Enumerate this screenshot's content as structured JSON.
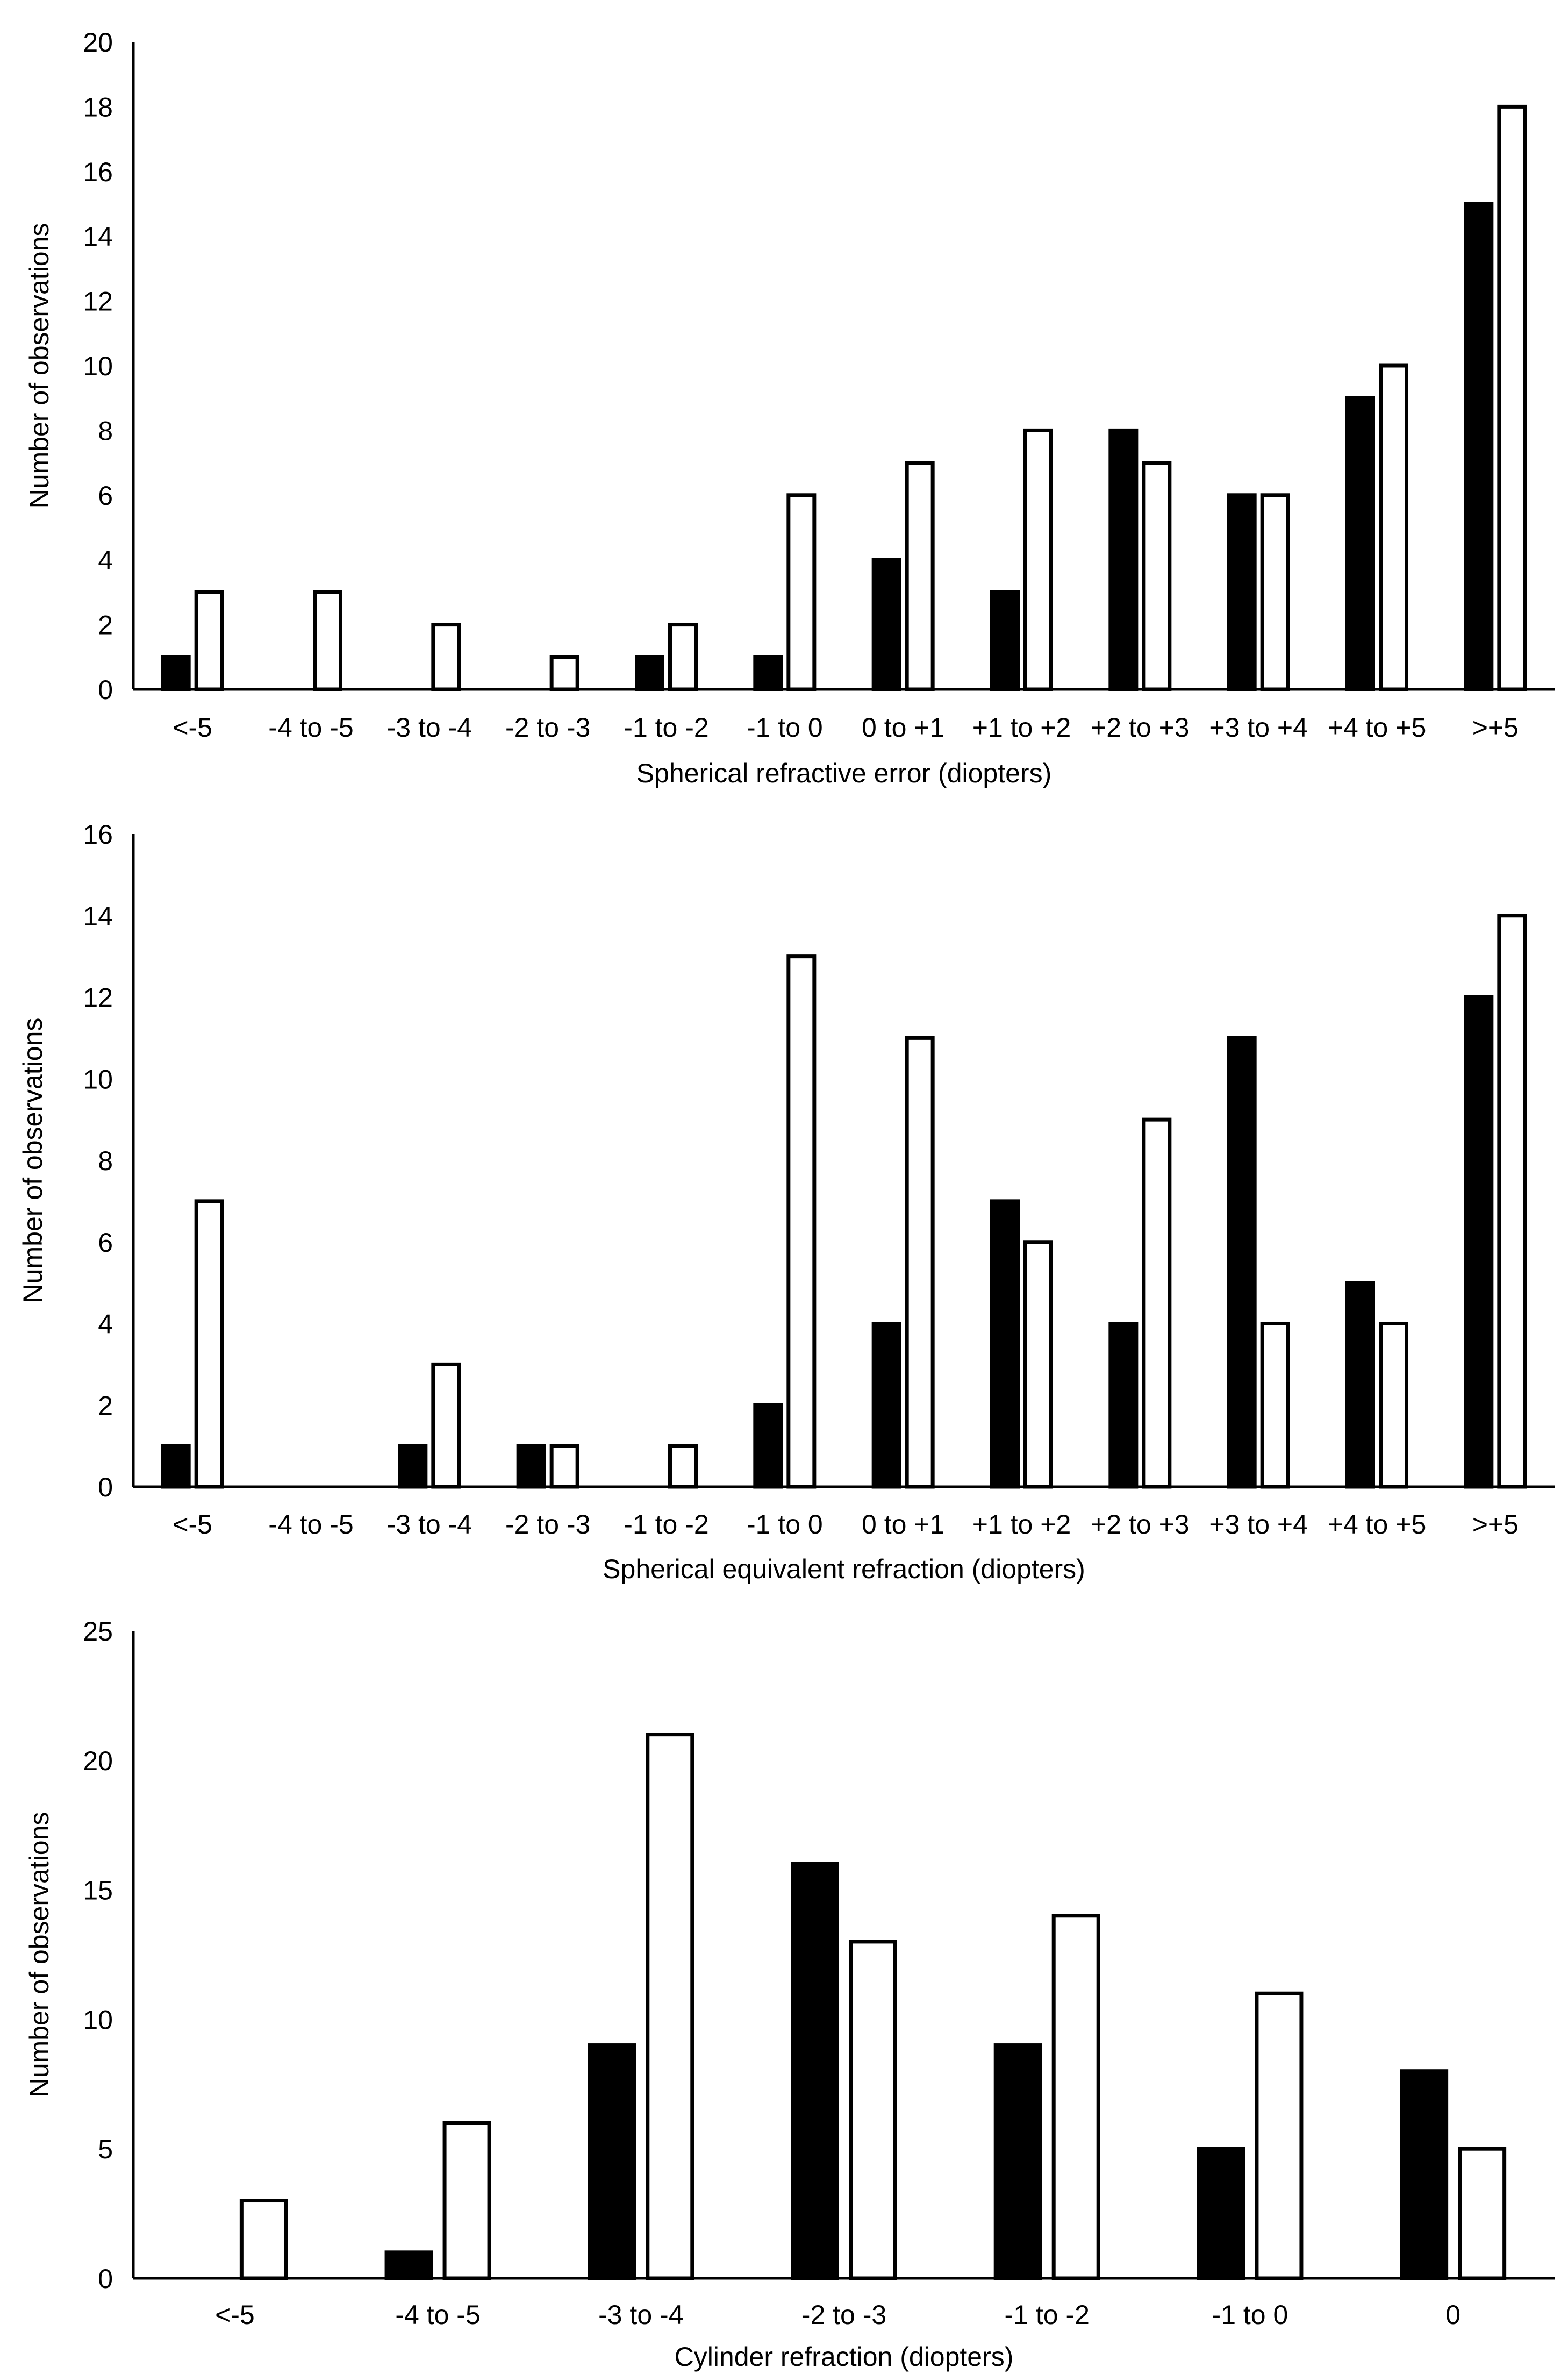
{
  "colors": {
    "series_a": "#000000",
    "series_b": "#ffffff",
    "axis": "#000000"
  },
  "chart_data": [
    {
      "type": "bar",
      "xlabel": "Spherical refractive error (diopters)",
      "ylabel": "Number of observations",
      "ylim": [
        0,
        20
      ],
      "yticks": [
        0,
        2,
        4,
        6,
        8,
        10,
        12,
        14,
        16,
        18,
        20
      ],
      "categories": [
        "<-5",
        "-4 to -5",
        "-3 to -4",
        "-2 to -3",
        "-1 to -2",
        "-1 to 0",
        "0 to +1",
        "+1 to +2",
        "+2 to +3",
        "+3 to +4",
        "+4 to +5",
        ">+5"
      ],
      "series": [
        {
          "name": "black",
          "values": [
            1,
            0,
            0,
            0,
            1,
            1,
            4,
            3,
            8,
            6,
            9,
            15
          ]
        },
        {
          "name": "white",
          "values": [
            3,
            3,
            2,
            1,
            2,
            6,
            7,
            8,
            7,
            6,
            10,
            18
          ]
        }
      ]
    },
    {
      "type": "bar",
      "xlabel": "Spherical equivalent refraction (diopters)",
      "ylabel": "Number of observations",
      "ylim": [
        0,
        16
      ],
      "yticks": [
        0,
        2,
        4,
        6,
        8,
        10,
        12,
        14,
        16
      ],
      "categories": [
        "<-5",
        "-4 to -5",
        "-3 to -4",
        "-2 to -3",
        "-1 to -2",
        "-1 to 0",
        "0 to +1",
        "+1 to +2",
        "+2 to +3",
        "+3 to +4",
        "+4 to +5",
        ">+5"
      ],
      "series": [
        {
          "name": "black",
          "values": [
            1,
            0,
            1,
            1,
            0,
            2,
            4,
            7,
            4,
            11,
            5,
            12
          ]
        },
        {
          "name": "white",
          "values": [
            7,
            0,
            3,
            1,
            1,
            13,
            11,
            6,
            9,
            4,
            4,
            14
          ]
        }
      ]
    },
    {
      "type": "bar",
      "xlabel": "Cylinder refraction (diopters)",
      "ylabel": "Number of observations",
      "ylim": [
        0,
        25
      ],
      "yticks": [
        0,
        5,
        10,
        15,
        20,
        25
      ],
      "categories": [
        "<-5",
        "-4 to -5",
        "-3 to -4",
        "-2 to -3",
        "-1 to -2",
        "-1 to 0",
        "0"
      ],
      "series": [
        {
          "name": "black",
          "values": [
            0,
            1,
            9,
            16,
            9,
            5,
            8
          ]
        },
        {
          "name": "white",
          "values": [
            3,
            6,
            21,
            13,
            14,
            11,
            5
          ]
        }
      ]
    }
  ]
}
